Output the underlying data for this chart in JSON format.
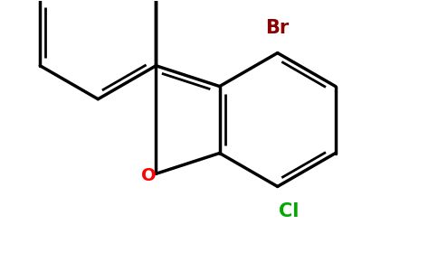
{
  "bg_color": "#ffffff",
  "bond_color": "#000000",
  "bond_lw": 2.5,
  "inner_lw": 2.0,
  "Br_color": "#8b0000",
  "Cl_color": "#00aa00",
  "O_color": "#ff0000",
  "Br_label": "Br",
  "Cl_label": "Cl",
  "O_label": "O",
  "font_size": 15,
  "figsize": [
    4.84,
    3.0
  ],
  "dpi": 100,
  "xlim": [
    0.2,
    4.9
  ],
  "ylim": [
    0.2,
    3.1
  ]
}
